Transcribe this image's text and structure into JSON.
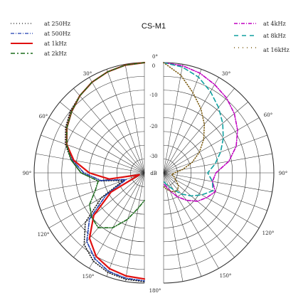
{
  "chart_data": {
    "type": "polar",
    "title": "CS-M1",
    "radial_axis": {
      "unit_label": "dB",
      "tick_labels": [
        "0",
        "-10",
        "-20",
        "-30"
      ],
      "ticks": [
        0,
        -10,
        -20,
        -30
      ],
      "range": [
        -40,
        0
      ]
    },
    "angle_axis": {
      "tick_labels_left": [
        "30°",
        "60°",
        "90°",
        "120°",
        "150°"
      ],
      "tick_labels_right": [
        "30°",
        "60°",
        "90°",
        "120°",
        "150°"
      ],
      "top_label": "0°",
      "bottom_label": "180°",
      "grid_step_deg": 10
    },
    "legend_left": [
      {
        "label": "at 250Hz",
        "series": "250Hz"
      },
      {
        "label": "at 500Hz",
        "series": "500Hz"
      },
      {
        "label": "at 1kHz",
        "series": "1kHz"
      },
      {
        "label": "at 2kHz",
        "series": "2kHz"
      }
    ],
    "legend_right": [
      {
        "label": "at 4kHz",
        "series": "4kHz"
      },
      {
        "label": "at 8kHz",
        "series": "8kHz"
      },
      {
        "label": "at 16kHz",
        "series": "16kHz"
      }
    ],
    "series": [
      {
        "name": "250Hz",
        "side": "left",
        "color": "#1a1a1a",
        "style": "dotted",
        "angles": [
          0,
          10,
          20,
          30,
          40,
          50,
          60,
          70,
          80,
          90,
          100,
          110,
          120,
          130,
          140,
          150,
          160,
          170,
          180
        ],
        "values": [
          0,
          -0.3,
          -1,
          -2,
          -3.5,
          -5,
          -7,
          -9.5,
          -13,
          -17,
          -23,
          -32,
          -22,
          -12,
          -6,
          -3,
          -1.5,
          -0.8,
          -0.5
        ]
      },
      {
        "name": "500Hz",
        "side": "left",
        "color": "#1f3fb0",
        "style": "dashdot",
        "angles": [
          0,
          10,
          20,
          30,
          40,
          50,
          60,
          70,
          80,
          90,
          100,
          110,
          120,
          130,
          140,
          150,
          160,
          170,
          180
        ],
        "values": [
          0,
          -0.3,
          -1,
          -2,
          -3.5,
          -5.5,
          -7.5,
          -10,
          -13.5,
          -18,
          -24,
          -33,
          -24,
          -14,
          -7.5,
          -4,
          -2,
          -1.2,
          -0.8
        ]
      },
      {
        "name": "1kHz",
        "side": "left",
        "color": "#e01010",
        "style": "solid",
        "angles": [
          0,
          10,
          20,
          30,
          40,
          50,
          60,
          70,
          80,
          90,
          100,
          110,
          120,
          130,
          140,
          150,
          160,
          170,
          180
        ],
        "values": [
          0,
          -0.3,
          -1,
          -2,
          -3.5,
          -5.5,
          -7.5,
          -10,
          -14,
          -20,
          -27,
          -38,
          -26,
          -16,
          -9,
          -5,
          -3,
          -2,
          -1.5
        ]
      },
      {
        "name": "2kHz",
        "side": "left",
        "color": "#1a6b1a",
        "style": "dashdot",
        "angles": [
          0,
          10,
          20,
          30,
          40,
          50,
          60,
          70,
          80,
          90,
          100,
          110,
          120,
          130,
          140,
          150,
          160,
          170,
          180
        ],
        "values": [
          0,
          -0.3,
          -1,
          -2,
          -3.5,
          -5.5,
          -7.5,
          -10,
          -13,
          -17,
          -23,
          -21,
          -17,
          -15,
          -14,
          -17,
          -22,
          -27,
          -30
        ]
      },
      {
        "name": "4kHz",
        "side": "right",
        "color": "#c000c0",
        "style": "dashdot",
        "angles": [
          0,
          10,
          20,
          30,
          40,
          50,
          60,
          70,
          80,
          90,
          100,
          110,
          120,
          130,
          140,
          150,
          160,
          170,
          180
        ],
        "values": [
          0,
          -0.5,
          -1.5,
          -3,
          -4.5,
          -6.5,
          -9,
          -12,
          -16,
          -21,
          -22,
          -20,
          -22,
          -24,
          -27,
          -30,
          -33,
          -35,
          -36
        ]
      },
      {
        "name": "8kHz",
        "side": "right",
        "color": "#10a0a0",
        "style": "dashed",
        "angles": [
          0,
          10,
          20,
          30,
          40,
          50,
          60,
          70,
          80,
          90,
          100,
          110,
          120,
          130,
          140,
          150,
          160,
          170,
          180
        ],
        "values": [
          0,
          -1,
          -3,
          -6,
          -9,
          -12,
          -15,
          -18,
          -21,
          -24,
          -22,
          -21,
          -24,
          -27,
          -30,
          -33,
          -35,
          -36,
          -37
        ]
      },
      {
        "name": "16kHz",
        "side": "right",
        "color": "#7a5a10",
        "style": "dotted",
        "angles": [
          0,
          10,
          20,
          30,
          40,
          50,
          60,
          70,
          80,
          90,
          100,
          110,
          120,
          130,
          140,
          150,
          160,
          170,
          180
        ],
        "values": [
          0,
          -4,
          -9,
          -13,
          -17,
          -21,
          -25,
          -29,
          -33,
          -36,
          -37,
          -36,
          -35,
          -33,
          -32,
          -32,
          -33,
          -34,
          -35
        ]
      }
    ]
  }
}
